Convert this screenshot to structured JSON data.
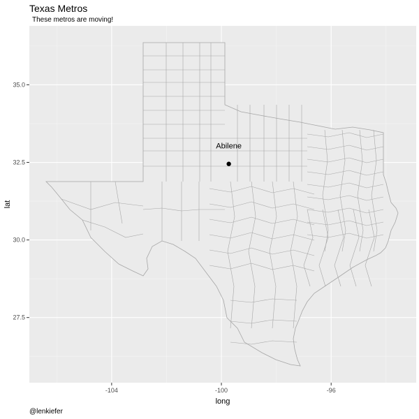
{
  "title": "Texas Metros",
  "subtitle": "These metros are moving!",
  "caption": "@lenkiefer",
  "chart_data": {
    "type": "scatter",
    "map": "texas-counties",
    "xlabel": "long",
    "ylabel": "lat",
    "xlim": [
      -107.0,
      -92.9
    ],
    "ylim": [
      25.4,
      36.9
    ],
    "x_ticks": [
      -104,
      -100,
      -96
    ],
    "x_tick_labels": [
      "-104",
      "-100",
      "-96"
    ],
    "y_ticks": [
      27.5,
      30.0,
      32.5,
      35.0
    ],
    "y_tick_labels": [
      "27.5",
      "30.0",
      "32.5",
      "35.0"
    ],
    "grid": true,
    "points": [
      {
        "label": "Abilene",
        "long": -99.73,
        "lat": 32.45
      }
    ],
    "colors": {
      "panel": "#ebebeb",
      "grid_major": "#ffffff",
      "grid_minor": "#f5f5f5",
      "state_fill": "#ebebeb",
      "county_line": "#a6a6a6",
      "point": "#000000"
    }
  }
}
